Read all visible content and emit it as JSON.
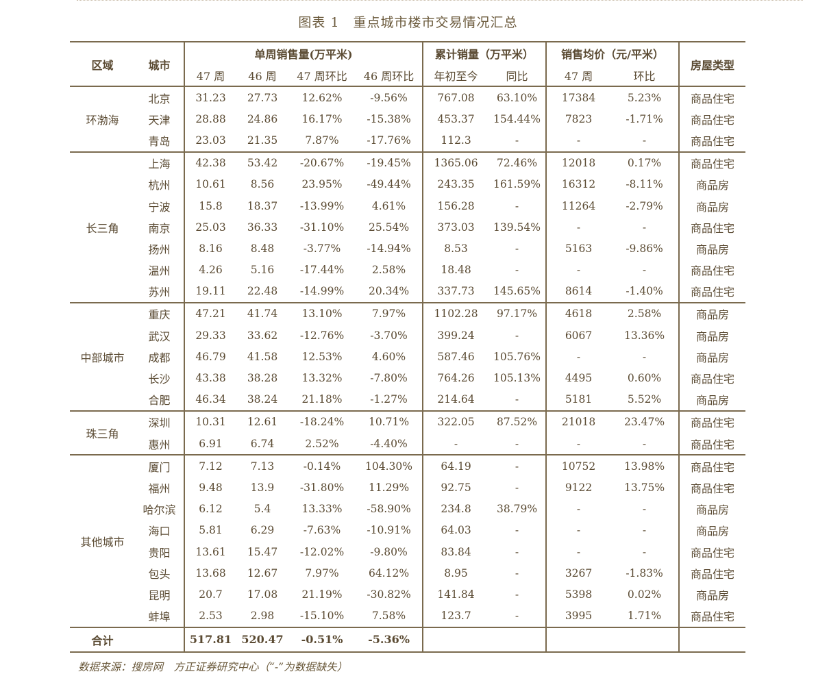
{
  "title": "图表 1　重点城市楼市交易情况汇总",
  "headers": {
    "region": "区域",
    "city": "城市",
    "weekly_sales": "单周销售量(万平米)",
    "cumulative_sales": "累计销量（万平米）",
    "avg_price": "销售均价（元/平米）",
    "house_type": "房屋类型",
    "w47": "47 周",
    "w46": "46 周",
    "w47_mom": "47 周环比",
    "w46_mom": "46 周环比",
    "ytd": "年初至今",
    "yoy": "同比",
    "p47": "47 周",
    "p_mom": "环比"
  },
  "groups": [
    {
      "region": "环渤海",
      "rows": [
        [
          "北京",
          "31.23",
          "27.73",
          "12.62%",
          "-9.56%",
          "767.08",
          "63.10%",
          "17384",
          "5.23%",
          "商品住宅"
        ],
        [
          "天津",
          "28.88",
          "24.86",
          "16.17%",
          "-15.38%",
          "453.37",
          "154.44%",
          "7823",
          "-1.71%",
          "商品住宅"
        ],
        [
          "青岛",
          "23.03",
          "21.35",
          "7.87%",
          "-17.76%",
          "112.3",
          "-",
          "-",
          "-",
          "商品住宅"
        ]
      ]
    },
    {
      "region": "长三角",
      "rows": [
        [
          "上海",
          "42.38",
          "53.42",
          "-20.67%",
          "-19.45%",
          "1365.06",
          "72.46%",
          "12018",
          "0.17%",
          "商品住宅"
        ],
        [
          "杭州",
          "10.61",
          "8.56",
          "23.95%",
          "-49.44%",
          "243.35",
          "161.59%",
          "16312",
          "-8.11%",
          "商品房"
        ],
        [
          "宁波",
          "15.8",
          "18.37",
          "-13.99%",
          "4.61%",
          "156.28",
          "-",
          "11264",
          "-2.79%",
          "商品房"
        ],
        [
          "南京",
          "25.03",
          "36.33",
          "-31.10%",
          "25.54%",
          "373.03",
          "139.54%",
          "-",
          "-",
          "商品住宅"
        ],
        [
          "扬州",
          "8.16",
          "8.48",
          "-3.77%",
          "-14.94%",
          "8.53",
          "-",
          "5163",
          "-9.86%",
          "商品房"
        ],
        [
          "温州",
          "4.26",
          "5.16",
          "-17.44%",
          "2.58%",
          "18.48",
          "-",
          "-",
          "-",
          "商品住宅"
        ],
        [
          "苏州",
          "19.11",
          "22.48",
          "-14.99%",
          "20.34%",
          "337.73",
          "145.65%",
          "8614",
          "-1.40%",
          "商品住宅"
        ]
      ]
    },
    {
      "region": "中部城市",
      "rows": [
        [
          "重庆",
          "47.21",
          "41.74",
          "13.10%",
          "7.97%",
          "1102.28",
          "97.17%",
          "4618",
          "2.58%",
          "商品房"
        ],
        [
          "武汉",
          "29.33",
          "33.62",
          "-12.76%",
          "-3.70%",
          "399.24",
          "-",
          "6067",
          "13.36%",
          "商品房"
        ],
        [
          "成都",
          "46.79",
          "41.58",
          "12.53%",
          "4.60%",
          "587.46",
          "105.76%",
          "-",
          "-",
          "商品房"
        ],
        [
          "长沙",
          "43.38",
          "38.28",
          "13.32%",
          "-7.80%",
          "764.26",
          "105.13%",
          "4495",
          "0.60%",
          "商品住宅"
        ],
        [
          "合肥",
          "46.34",
          "38.24",
          "21.18%",
          "-1.27%",
          "214.64",
          "-",
          "5181",
          "5.52%",
          "商品房"
        ]
      ]
    },
    {
      "region": "珠三角",
      "rows": [
        [
          "深圳",
          "10.31",
          "12.61",
          "-18.24%",
          "10.71%",
          "322.05",
          "87.52%",
          "21018",
          "23.47%",
          "商品住宅"
        ],
        [
          "惠州",
          "6.91",
          "6.74",
          "2.52%",
          "-4.40%",
          "-",
          "-",
          "-",
          "-",
          "商品住宅"
        ]
      ]
    },
    {
      "region": "其他城市",
      "rows": [
        [
          "厦门",
          "7.12",
          "7.13",
          "-0.14%",
          "104.30%",
          "64.19",
          "-",
          "10752",
          "13.98%",
          "商品住宅"
        ],
        [
          "福州",
          "9.48",
          "13.9",
          "-31.80%",
          "11.29%",
          "92.75",
          "-",
          "9122",
          "13.75%",
          "商品住宅"
        ],
        [
          "哈尔滨",
          "6.12",
          "5.4",
          "13.33%",
          "-58.90%",
          "234.8",
          "38.79%",
          "-",
          "-",
          "商品房"
        ],
        [
          "海口",
          "5.81",
          "6.29",
          "-7.63%",
          "-10.91%",
          "64.03",
          "-",
          "-",
          "-",
          "商品房"
        ],
        [
          "贵阳",
          "13.61",
          "15.47",
          "-12.02%",
          "-9.80%",
          "83.84",
          "-",
          "-",
          "-",
          "商品住宅"
        ],
        [
          "包头",
          "13.68",
          "12.67",
          "7.97%",
          "64.12%",
          "8.95",
          "-",
          "3267",
          "-1.83%",
          "商品住宅"
        ],
        [
          "昆明",
          "20.7",
          "17.08",
          "21.19%",
          "-30.82%",
          "141.84",
          "-",
          "5398",
          "0.02%",
          "商品房"
        ],
        [
          "蚌埠",
          "2.53",
          "2.98",
          "-15.10%",
          "7.58%",
          "123.7",
          "-",
          "3995",
          "1.71%",
          "商品住宅"
        ]
      ]
    }
  ],
  "total": {
    "label": "合计",
    "w47": "517.81",
    "w46": "520.47",
    "w47_mom": "-0.51%",
    "w46_mom": "-5.36%"
  },
  "source": "数据来源：搜房网　方正证券研究中心（“-”为数据缺失）"
}
